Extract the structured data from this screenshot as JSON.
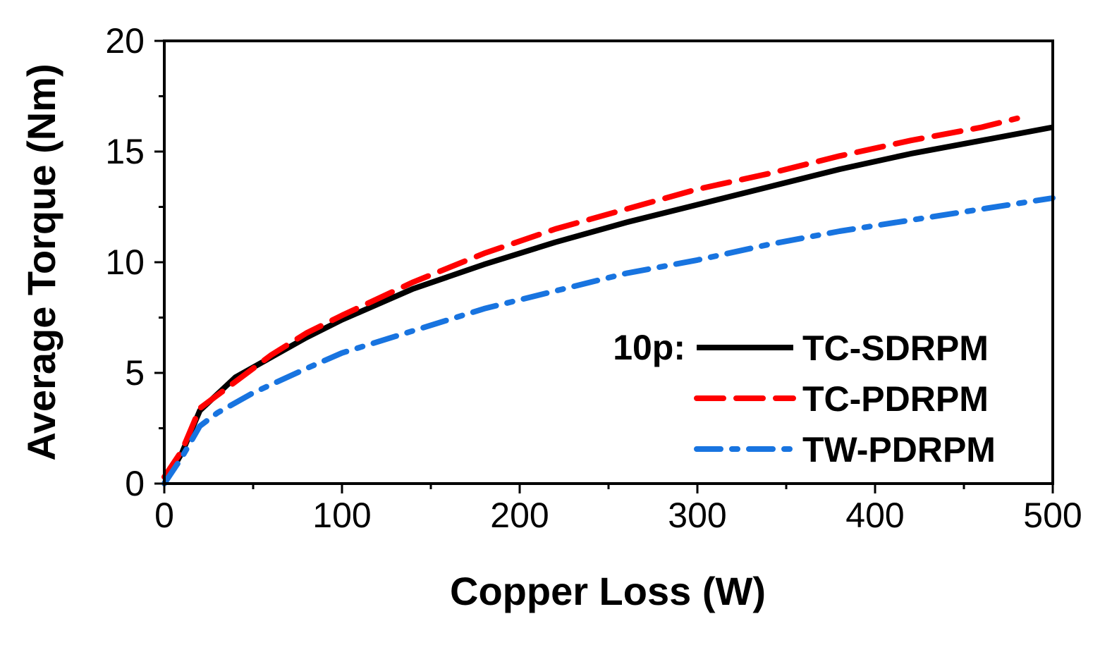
{
  "chart_data": {
    "type": "line",
    "title": "",
    "xlabel": "Copper Loss (W)",
    "ylabel": "Average Torque (Nm)",
    "xlim": [
      0,
      500
    ],
    "ylim": [
      0,
      20
    ],
    "xticks": [
      0,
      100,
      200,
      300,
      400,
      500
    ],
    "yticks": [
      0,
      5,
      10,
      15,
      20
    ],
    "xtick_labels": [
      "0",
      "100",
      "200",
      "300",
      "400",
      "500"
    ],
    "ytick_labels": [
      "0",
      "5",
      "10",
      "15",
      "20"
    ],
    "grid": false,
    "legend_position": "bottom-right",
    "legend_prefix": "10p:",
    "series": [
      {
        "name": "TC-SDRPM",
        "color": "#000000",
        "style": "solid",
        "x": [
          0,
          10,
          20,
          40,
          60,
          80,
          100,
          140,
          180,
          220,
          260,
          300,
          340,
          380,
          420,
          460,
          500
        ],
        "y": [
          0,
          1.4,
          3.3,
          4.8,
          5.7,
          6.6,
          7.4,
          8.8,
          9.9,
          10.9,
          11.8,
          12.6,
          13.4,
          14.2,
          14.9,
          15.5,
          16.1
        ]
      },
      {
        "name": "TC-PDRPM",
        "color": "#ff0000",
        "style": "dashed",
        "x": [
          0,
          10,
          20,
          40,
          60,
          80,
          100,
          140,
          180,
          220,
          260,
          300,
          340,
          380,
          420,
          460,
          480
        ],
        "y": [
          0.3,
          1.5,
          3.4,
          4.6,
          5.8,
          6.8,
          7.6,
          9.1,
          10.4,
          11.5,
          12.4,
          13.3,
          14.0,
          14.8,
          15.5,
          16.1,
          16.5
        ]
      },
      {
        "name": "TW-PDRPM",
        "color": "#1874e0",
        "style": "dashdot",
        "x": [
          0,
          10,
          20,
          30,
          50,
          80,
          100,
          140,
          180,
          220,
          260,
          300,
          340,
          380,
          420,
          460,
          500
        ],
        "y": [
          0,
          1.2,
          2.6,
          3.2,
          4.1,
          5.2,
          5.9,
          6.9,
          7.9,
          8.7,
          9.5,
          10.1,
          10.8,
          11.4,
          11.9,
          12.4,
          12.9
        ]
      }
    ]
  }
}
